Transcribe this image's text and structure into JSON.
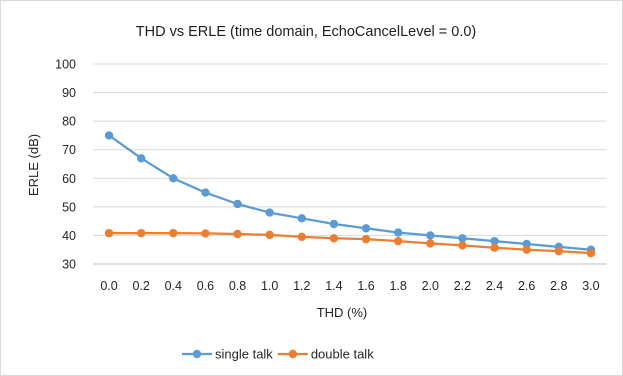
{
  "chart_data": {
    "type": "line",
    "title": "THD vs ERLE  (time domain, EchoCancelLevel = 0.0)",
    "xlabel": "THD (%)",
    "ylabel": "ERLE (dB)",
    "categories": [
      "0.0",
      "0.2",
      "0.4",
      "0.6",
      "0.8",
      "1.0",
      "1.2",
      "1.4",
      "1.6",
      "1.8",
      "2.0",
      "2.2",
      "2.4",
      "2.6",
      "2.8",
      "3.0"
    ],
    "ylim": [
      30,
      100
    ],
    "yticks": [
      "30",
      "40",
      "50",
      "60",
      "70",
      "80",
      "90",
      "100"
    ],
    "grid": true,
    "legend_position": "bottom",
    "series": [
      {
        "name": "single talk",
        "color": "#5b9bd5",
        "values": [
          75,
          67,
          60,
          55,
          51,
          48,
          46,
          44,
          42.5,
          41,
          40,
          39,
          38,
          37,
          36,
          35
        ]
      },
      {
        "name": "double talk",
        "color": "#ed7d31",
        "values": [
          40.8,
          40.8,
          40.8,
          40.7,
          40.5,
          40.2,
          39.5,
          39,
          38.7,
          38,
          37.2,
          36.5,
          35.7,
          35,
          34.5,
          33.8
        ]
      }
    ]
  }
}
